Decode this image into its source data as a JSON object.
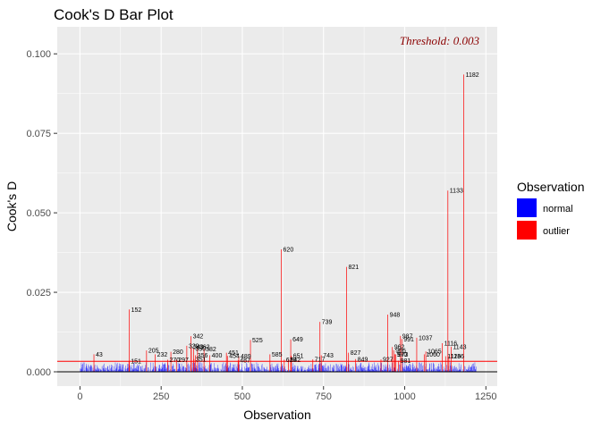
{
  "chart_data": {
    "type": "bar",
    "title": "Cook's D Bar Plot",
    "xlabel": "Observation",
    "ylabel": "Cook's D",
    "xlim": [
      -70,
      1285
    ],
    "ylim": [
      -0.0045,
      0.1085
    ],
    "x_ticks": [
      0,
      250,
      500,
      750,
      1000,
      1250
    ],
    "x_tick_labels": [
      "0",
      "250",
      "500",
      "750",
      "1000",
      "1250"
    ],
    "y_ticks": [
      0.0,
      0.025,
      0.05,
      0.075,
      0.1
    ],
    "y_tick_labels": [
      "0.000",
      "0.025",
      "0.050",
      "0.075",
      "0.100"
    ],
    "threshold": 0.0033,
    "threshold_label": "Threshold: 0.003",
    "n_observations": 1220,
    "grid": true,
    "legend": {
      "title": "Observation",
      "position": "right",
      "entries": [
        {
          "label": "normal",
          "color": "#0000ff"
        },
        {
          "label": "outlier",
          "color": "#ff0000"
        }
      ]
    },
    "colors": {
      "normal": "#0000ff",
      "outlier": "#ff0000",
      "threshold_line": "#ff0000",
      "panel": "#ebebeb",
      "grid": "#ffffff"
    },
    "series": [
      {
        "name": "outlier",
        "points": [
          {
            "x": 43,
            "y": 0.0055,
            "label": "43"
          },
          {
            "x": 151,
            "y": 0.0034,
            "label": "151"
          },
          {
            "x": 152,
            "y": 0.0196,
            "label": "152"
          },
          {
            "x": 205,
            "y": 0.0067,
            "label": "205"
          },
          {
            "x": 232,
            "y": 0.0055,
            "label": "232"
          },
          {
            "x": 270,
            "y": 0.0038,
            "label": "270"
          },
          {
            "x": 280,
            "y": 0.0063,
            "label": "280"
          },
          {
            "x": 297,
            "y": 0.0038,
            "label": "297"
          },
          {
            "x": 329,
            "y": 0.0082,
            "label": "329"
          },
          {
            "x": 342,
            "y": 0.0112,
            "label": "342"
          },
          {
            "x": 343,
            "y": 0.0079,
            "label": "343"
          },
          {
            "x": 350,
            "y": 0.0073,
            "label": "350"
          },
          {
            "x": 351,
            "y": 0.004,
            "label": "351"
          },
          {
            "x": 356,
            "y": 0.0052,
            "label": "356"
          },
          {
            "x": 362,
            "y": 0.0078,
            "label": "362"
          },
          {
            "x": 382,
            "y": 0.0071,
            "label": "382"
          },
          {
            "x": 400,
            "y": 0.0052,
            "label": "400"
          },
          {
            "x": 451,
            "y": 0.006,
            "label": "451"
          },
          {
            "x": 454,
            "y": 0.005,
            "label": "454"
          },
          {
            "x": 487,
            "y": 0.0036,
            "label": "487"
          },
          {
            "x": 489,
            "y": 0.0049,
            "label": "489"
          },
          {
            "x": 525,
            "y": 0.01,
            "label": "525"
          },
          {
            "x": 585,
            "y": 0.0055,
            "label": "585"
          },
          {
            "x": 620,
            "y": 0.0385,
            "label": "620"
          },
          {
            "x": 629,
            "y": 0.0038,
            "label": "629"
          },
          {
            "x": 642,
            "y": 0.0038,
            "label": "642"
          },
          {
            "x": 649,
            "y": 0.0102,
            "label": "649"
          },
          {
            "x": 651,
            "y": 0.005,
            "label": "651"
          },
          {
            "x": 717,
            "y": 0.0039,
            "label": "717"
          },
          {
            "x": 739,
            "y": 0.0157,
            "label": "739"
          },
          {
            "x": 743,
            "y": 0.0052,
            "label": "743"
          },
          {
            "x": 821,
            "y": 0.033,
            "label": "821"
          },
          {
            "x": 827,
            "y": 0.006,
            "label": "827"
          },
          {
            "x": 849,
            "y": 0.004,
            "label": "849"
          },
          {
            "x": 927,
            "y": 0.0039,
            "label": "927"
          },
          {
            "x": 948,
            "y": 0.018,
            "label": "948"
          },
          {
            "x": 962,
            "y": 0.0078,
            "label": "962"
          },
          {
            "x": 966,
            "y": 0.0068,
            "label": "966"
          },
          {
            "x": 970,
            "y": 0.0055,
            "label": "970"
          },
          {
            "x": 973,
            "y": 0.0055,
            "label": "973"
          },
          {
            "x": 981,
            "y": 0.0035,
            "label": "981"
          },
          {
            "x": 987,
            "y": 0.0113,
            "label": "987"
          },
          {
            "x": 991,
            "y": 0.0103,
            "label": "991"
          },
          {
            "x": 1037,
            "y": 0.0107,
            "label": "1037"
          },
          {
            "x": 1060,
            "y": 0.0055,
            "label": "1060"
          },
          {
            "x": 1065,
            "y": 0.0064,
            "label": "1065"
          },
          {
            "x": 1116,
            "y": 0.009,
            "label": "1116"
          },
          {
            "x": 1126,
            "y": 0.0049,
            "label": "1126"
          },
          {
            "x": 1133,
            "y": 0.057,
            "label": "1133"
          },
          {
            "x": 1136,
            "y": 0.0049,
            "label": "1136"
          },
          {
            "x": 1143,
            "y": 0.0079,
            "label": "1143"
          },
          {
            "x": 1182,
            "y": 0.0935,
            "label": "1182"
          }
        ]
      },
      {
        "name": "normal",
        "seed": 7,
        "note_range": [
          0.0001,
          0.003
        ]
      }
    ]
  }
}
